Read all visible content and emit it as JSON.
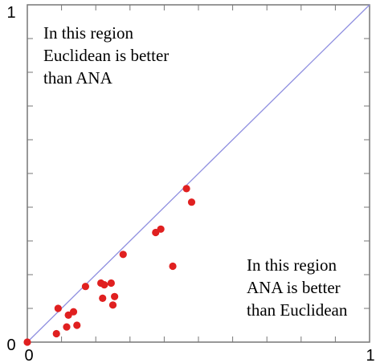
{
  "chart_data": {
    "type": "scatter",
    "xlim": [
      0,
      1
    ],
    "ylim": [
      0,
      1
    ],
    "x_ticks": [
      "0",
      "1"
    ],
    "y_ticks": [
      "0",
      "1"
    ],
    "grid": false,
    "diagonal_line": {
      "from": [
        0,
        0
      ],
      "to": [
        1,
        1
      ],
      "color": "#8f8fe0"
    },
    "point_color": "#e02020",
    "annotations": {
      "upper_left": [
        "In this region",
        "Euclidean is better",
        "than ANA"
      ],
      "lower_right": [
        "In this region",
        "ANA is better",
        "than Euclidean"
      ]
    },
    "points": [
      {
        "x": 0.0,
        "y": 0.0
      },
      {
        "x": 0.085,
        "y": 0.025
      },
      {
        "x": 0.09,
        "y": 0.1
      },
      {
        "x": 0.115,
        "y": 0.045
      },
      {
        "x": 0.12,
        "y": 0.08
      },
      {
        "x": 0.135,
        "y": 0.09
      },
      {
        "x": 0.145,
        "y": 0.05
      },
      {
        "x": 0.17,
        "y": 0.165
      },
      {
        "x": 0.215,
        "y": 0.175
      },
      {
        "x": 0.22,
        "y": 0.13
      },
      {
        "x": 0.225,
        "y": 0.17
      },
      {
        "x": 0.245,
        "y": 0.175
      },
      {
        "x": 0.25,
        "y": 0.11
      },
      {
        "x": 0.255,
        "y": 0.135
      },
      {
        "x": 0.28,
        "y": 0.26
      },
      {
        "x": 0.375,
        "y": 0.325
      },
      {
        "x": 0.39,
        "y": 0.335
      },
      {
        "x": 0.425,
        "y": 0.225
      },
      {
        "x": 0.465,
        "y": 0.455
      },
      {
        "x": 0.48,
        "y": 0.415
      }
    ]
  }
}
